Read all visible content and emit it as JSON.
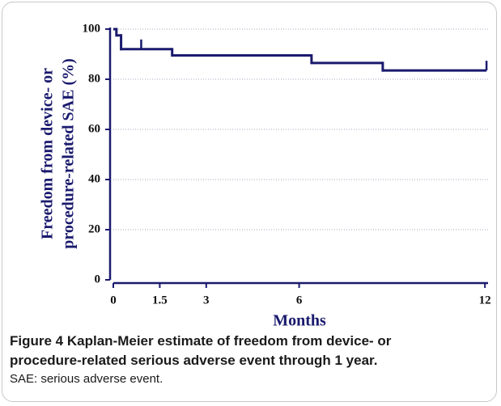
{
  "chart_data": {
    "type": "step",
    "ylabel_lines": [
      "Freedom from device- or",
      "procedure-related SAE (%)"
    ],
    "xlabel": "Months",
    "x": [
      0,
      0.1,
      0.25,
      1.9,
      6.4,
      8.7
    ],
    "values": [
      100,
      97.5,
      92,
      89.5,
      86.5,
      83.5
    ],
    "censored": {
      "x": [
        0.9,
        12.05
      ],
      "values": [
        92,
        83.5
      ]
    },
    "color": "#1a1a6e",
    "xlim": [
      0,
      12.1
    ],
    "ylim": [
      0,
      100
    ],
    "xticks": [
      0,
      1.5,
      3,
      6,
      12
    ],
    "yticks": [
      0,
      20,
      40,
      60,
      80,
      100
    ],
    "grid": true
  },
  "caption": {
    "label": "Figure 4",
    "text": "Kaplan-Meier estimate of freedom from device- or procedure-related serious adverse event through 1 year.",
    "note": "SAE: serious adverse event."
  }
}
